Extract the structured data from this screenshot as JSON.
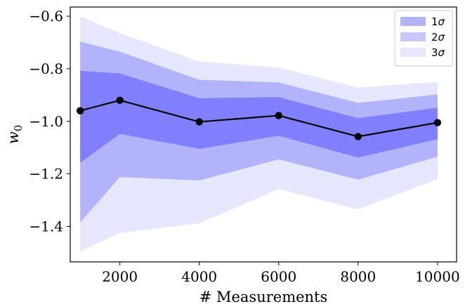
{
  "chart_data": {
    "type": "area",
    "xlabel": "# Measurements",
    "ylabel_base": "w",
    "ylabel_sub": "0",
    "xlim": [
      750,
      10480
    ],
    "ylim": [
      -1.535,
      -0.565
    ],
    "xticks": [
      2000,
      4000,
      6000,
      8000,
      10000
    ],
    "xtick_labels": [
      "2000",
      "4000",
      "6000",
      "8000",
      "10000"
    ],
    "yticks": [
      -0.6,
      -0.8,
      -1.0,
      -1.2,
      -1.4
    ],
    "ytick_labels": [
      "−0.6",
      "−0.8",
      "−1.0",
      "−1.2",
      "−1.4"
    ],
    "x": [
      1000,
      2000,
      4000,
      6000,
      8000,
      10000
    ],
    "center": [
      -0.96,
      -0.92,
      -1.002,
      -0.978,
      -1.058,
      -1.005
    ],
    "bands": [
      {
        "name": "3σ",
        "sigma": 3,
        "color": "#e6e6fc",
        "upper": [
          -0.6,
          -0.665,
          -0.772,
          -0.795,
          -0.872,
          -0.85
        ],
        "lower": [
          -1.495,
          -1.425,
          -1.388,
          -1.258,
          -1.335,
          -1.22
        ]
      },
      {
        "name": "2σ",
        "sigma": 2,
        "color": "#b3b3fc",
        "upper": [
          -0.697,
          -0.735,
          -0.842,
          -0.852,
          -0.93,
          -0.898
        ],
        "lower": [
          -1.385,
          -1.212,
          -1.225,
          -1.145,
          -1.222,
          -1.135
        ]
      },
      {
        "name": "1σ",
        "sigma": 1,
        "color": "#8080fc",
        "upper": [
          -0.808,
          -0.818,
          -0.912,
          -0.908,
          -0.988,
          -0.948
        ],
        "lower": [
          -1.158,
          -1.048,
          -1.105,
          -1.055,
          -1.138,
          -1.068
        ]
      }
    ],
    "legend": [
      {
        "symbol": "1",
        "color": "#b3b3fc"
      },
      {
        "symbol": "2",
        "color": "#c6c6fc"
      },
      {
        "symbol": "3",
        "color": "#e6e6fc"
      }
    ],
    "legend_position": "top-right",
    "line_color": "#000000"
  }
}
